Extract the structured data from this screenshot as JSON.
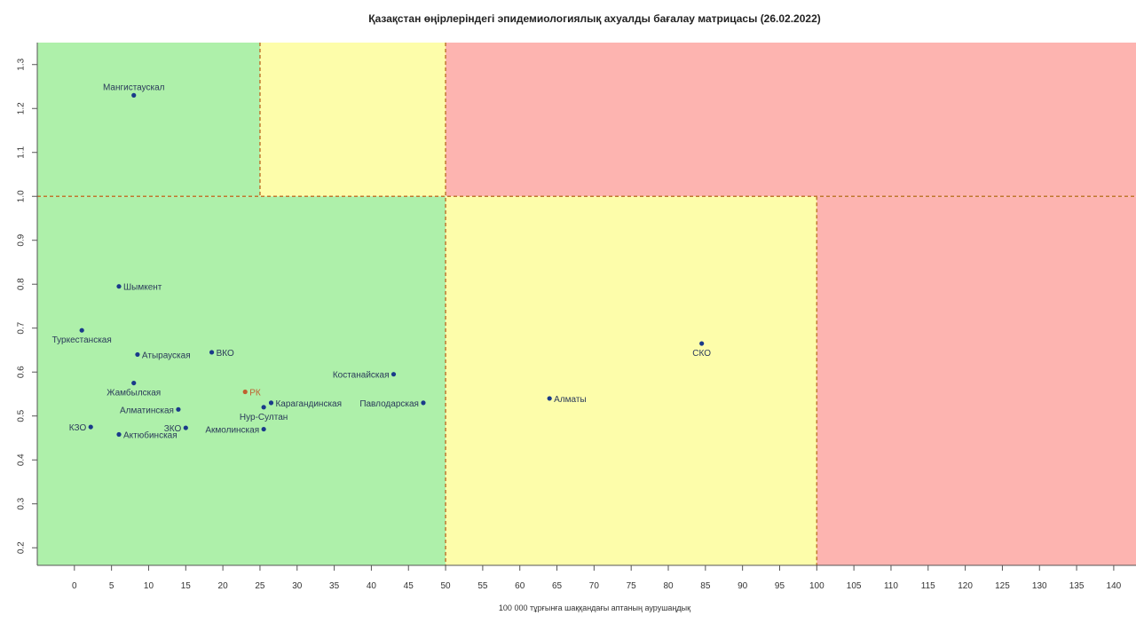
{
  "chart_data": {
    "type": "scatter",
    "title": "Қазақстан өңірлеріндегі эпидемиологиялық ахуалды бағалау матрицасы  (26.02.2022)",
    "xlabel": "100 000 тұрғынға шаққандағы аптаның аурушаңдық",
    "ylabel": "",
    "xlim": [
      -5,
      143
    ],
    "ylim": [
      0.16,
      1.35
    ],
    "x_ticks": [
      0,
      5,
      10,
      15,
      20,
      25,
      30,
      35,
      40,
      45,
      50,
      55,
      60,
      65,
      70,
      75,
      80,
      85,
      90,
      95,
      100,
      105,
      110,
      115,
      120,
      125,
      130,
      135,
      140
    ],
    "y_ticks": [
      0.2,
      0.3,
      0.4,
      0.5,
      0.6,
      0.7,
      0.8,
      0.9,
      1.0,
      1.1,
      1.2,
      1.3
    ],
    "thresholds": {
      "x": [
        25,
        50,
        100
      ],
      "y": [
        1.0
      ]
    },
    "zones": [
      {
        "x": [
          -5,
          25
        ],
        "y": [
          1.0,
          1.35
        ],
        "color": "#aef0aa"
      },
      {
        "x": [
          25,
          50
        ],
        "y": [
          1.0,
          1.35
        ],
        "color": "#fdfdaa"
      },
      {
        "x": [
          50,
          143
        ],
        "y": [
          1.0,
          1.35
        ],
        "color": "#fdb4b0"
      },
      {
        "x": [
          -5,
          50
        ],
        "y": [
          0.16,
          1.0
        ],
        "color": "#aef0aa"
      },
      {
        "x": [
          50,
          100
        ],
        "y": [
          0.16,
          1.0
        ],
        "color": "#fdfdaa"
      },
      {
        "x": [
          100,
          143
        ],
        "y": [
          0.16,
          1.0
        ],
        "color": "#fdb4b0"
      }
    ],
    "grid": false,
    "points": [
      {
        "label": "Мангистаускал",
        "x": 8,
        "y": 1.23,
        "pos": "above",
        "color": "#1a3a8a"
      },
      {
        "label": "Шымкент",
        "x": 6,
        "y": 0.795,
        "pos": "right",
        "color": "#1a3a8a"
      },
      {
        "label": "Туркестанская",
        "x": 1,
        "y": 0.695,
        "pos": "below",
        "color": "#1a3a8a"
      },
      {
        "label": "Атырауская",
        "x": 8.5,
        "y": 0.64,
        "pos": "right",
        "color": "#1a3a8a"
      },
      {
        "label": "ВКО",
        "x": 18.5,
        "y": 0.645,
        "pos": "right",
        "color": "#1a3a8a"
      },
      {
        "label": "Костанайская",
        "x": 43,
        "y": 0.595,
        "pos": "left",
        "color": "#1a3a8a"
      },
      {
        "label": "Жамбылская",
        "x": 8,
        "y": 0.575,
        "pos": "below",
        "color": "#1a3a8a"
      },
      {
        "label": "РК",
        "x": 23,
        "y": 0.555,
        "pos": "right",
        "color": "#c06030"
      },
      {
        "label": "Карагандинская",
        "x": 26.5,
        "y": 0.53,
        "pos": "right",
        "color": "#1a3a8a"
      },
      {
        "label": "Павлодарская",
        "x": 47,
        "y": 0.53,
        "pos": "left",
        "color": "#1a3a8a"
      },
      {
        "label": "Нур-Султан",
        "x": 25.5,
        "y": 0.52,
        "pos": "below",
        "color": "#1a3a8a"
      },
      {
        "label": "Алматинская",
        "x": 14,
        "y": 0.515,
        "pos": "left",
        "color": "#1a3a8a"
      },
      {
        "label": "Алматы",
        "x": 64,
        "y": 0.54,
        "pos": "right",
        "color": "#1a3a8a"
      },
      {
        "label": "СКО",
        "x": 84.5,
        "y": 0.665,
        "pos": "below",
        "color": "#1a3a8a"
      },
      {
        "label": "КЗО",
        "x": 2.2,
        "y": 0.475,
        "pos": "left",
        "color": "#1a3a8a"
      },
      {
        "label": "ЗКО",
        "x": 15,
        "y": 0.473,
        "pos": "left",
        "color": "#1a3a8a"
      },
      {
        "label": "Акмолинская",
        "x": 25.5,
        "y": 0.47,
        "pos": "left",
        "color": "#1a3a8a"
      },
      {
        "label": "Актюбинская",
        "x": 6,
        "y": 0.458,
        "pos": "right",
        "color": "#1a3a8a"
      }
    ]
  }
}
